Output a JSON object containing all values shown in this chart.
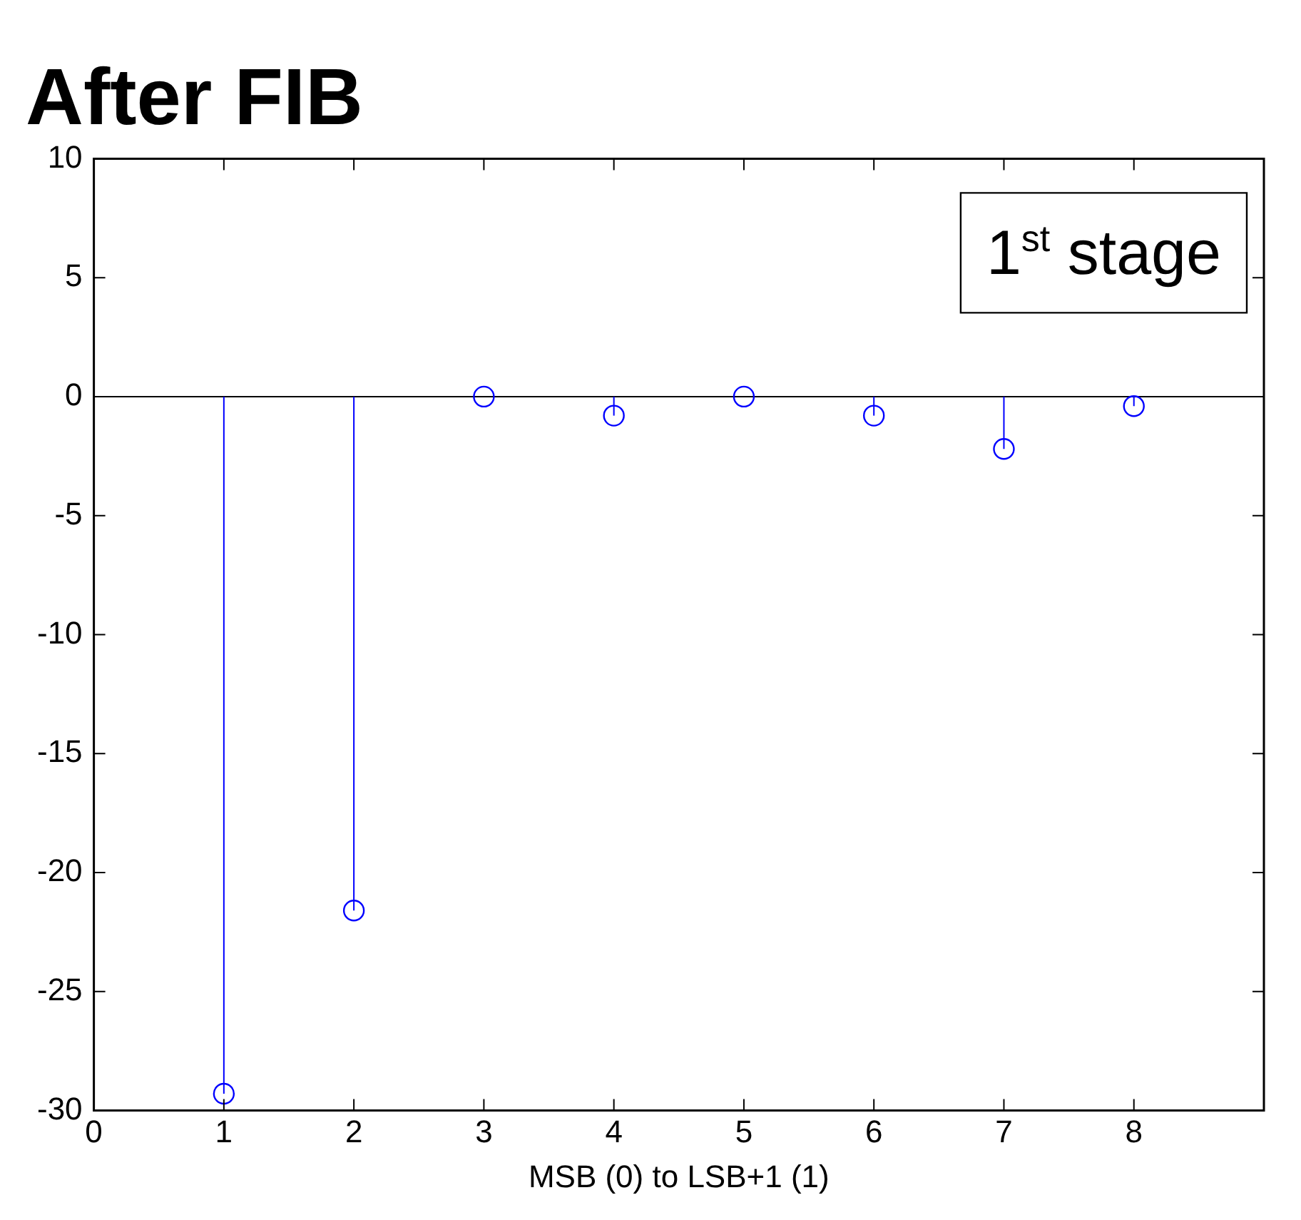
{
  "chart_data": {
    "type": "lollipop",
    "title": "After FIB",
    "xlabel": "MSB (0) to LSB+1 (1)",
    "x": [
      1,
      2,
      3,
      4,
      5,
      6,
      7,
      8
    ],
    "series": [
      {
        "color": "#0000ff",
        "values": [
          -29.3,
          -21.6,
          0,
          -0.8,
          0,
          -0.8,
          -2.2,
          -0.4
        ]
      }
    ],
    "xlim": [
      0,
      9
    ],
    "xticks": [
      0,
      1,
      2,
      3,
      4,
      5,
      6,
      7,
      8
    ],
    "ylim": [
      -30,
      10
    ],
    "yticks": [
      -30,
      -25,
      -20,
      -15,
      -10,
      -5,
      0,
      5,
      10
    ],
    "annotations": [
      "1$^{st}$ stage"
    ],
    "marker": "circle",
    "grid": false,
    "legend": false
  }
}
